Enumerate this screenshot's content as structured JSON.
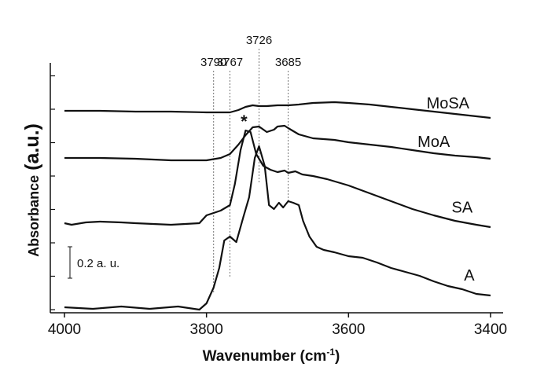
{
  "chart_data": {
    "type": "line",
    "title": "",
    "xlabel": "Wavenumber (cm",
    "xlabel_sup": "-1",
    "xlabel_suffix": ")",
    "ylabel": "Absorbance",
    "ylabel_unit": "(a.u.)",
    "xlim": [
      4000,
      3400
    ],
    "x_ticks": [
      "4000",
      "3800",
      "3600",
      "3400"
    ],
    "x_tick_values": [
      4000,
      3800,
      3600,
      3400
    ],
    "scale_bar_label": "0.2 a. u.",
    "scale_bar_value": 0.2,
    "peak_marker": "*",
    "peak_marker_x": 3745,
    "reference_lines": [
      {
        "x": 3790,
        "label": "3790"
      },
      {
        "x": 3767,
        "label": "3767"
      },
      {
        "x": 3726,
        "label": "3726"
      },
      {
        "x": 3685,
        "label": "3685"
      }
    ],
    "series": [
      {
        "name": "MoSA",
        "x": [
          4000,
          3950,
          3900,
          3850,
          3800,
          3780,
          3767,
          3755,
          3745,
          3735,
          3726,
          3715,
          3700,
          3685,
          3670,
          3650,
          3620,
          3600,
          3570,
          3540,
          3510,
          3480,
          3450,
          3420,
          3400
        ],
        "y": [
          2.55,
          2.55,
          2.54,
          2.54,
          2.53,
          2.53,
          2.53,
          2.56,
          2.6,
          2.62,
          2.61,
          2.61,
          2.62,
          2.62,
          2.63,
          2.65,
          2.66,
          2.65,
          2.63,
          2.6,
          2.57,
          2.54,
          2.51,
          2.48,
          2.46
        ]
      },
      {
        "name": "MoA",
        "x": [
          4000,
          3950,
          3900,
          3850,
          3800,
          3780,
          3767,
          3755,
          3745,
          3735,
          3726,
          3715,
          3705,
          3700,
          3690,
          3685,
          3670,
          3650,
          3620,
          3600,
          3570,
          3540,
          3510,
          3480,
          3450,
          3420,
          3400
        ],
        "y": [
          1.95,
          1.95,
          1.94,
          1.92,
          1.92,
          1.95,
          2.0,
          2.12,
          2.24,
          2.34,
          2.35,
          2.28,
          2.31,
          2.35,
          2.36,
          2.33,
          2.25,
          2.2,
          2.18,
          2.15,
          2.12,
          2.09,
          2.05,
          2.01,
          1.98,
          1.96,
          1.94
        ]
      },
      {
        "name": "SA",
        "x": [
          4000,
          3990,
          3970,
          3950,
          3920,
          3900,
          3850,
          3810,
          3800,
          3790,
          3780,
          3767,
          3760,
          3752,
          3745,
          3738,
          3730,
          3720,
          3710,
          3700,
          3690,
          3685,
          3675,
          3665,
          3650,
          3630,
          3600,
          3570,
          3540,
          3510,
          3480,
          3450,
          3420,
          3400
        ],
        "y": [
          1.12,
          1.1,
          1.13,
          1.14,
          1.13,
          1.12,
          1.1,
          1.12,
          1.22,
          1.25,
          1.28,
          1.35,
          1.62,
          2.05,
          2.3,
          2.28,
          2.0,
          1.85,
          1.8,
          1.77,
          1.79,
          1.76,
          1.78,
          1.74,
          1.72,
          1.68,
          1.6,
          1.5,
          1.4,
          1.3,
          1.22,
          1.15,
          1.1,
          1.07
        ]
      },
      {
        "name": "A",
        "x": [
          4000,
          3960,
          3920,
          3880,
          3840,
          3810,
          3800,
          3790,
          3782,
          3775,
          3767,
          3758,
          3748,
          3740,
          3732,
          3726,
          3718,
          3712,
          3705,
          3698,
          3692,
          3685,
          3678,
          3670,
          3664,
          3655,
          3645,
          3635,
          3620,
          3600,
          3580,
          3560,
          3540,
          3520,
          3500,
          3480,
          3460,
          3440,
          3420,
          3400
        ],
        "y": [
          0.05,
          0.03,
          0.06,
          0.03,
          0.06,
          0.02,
          0.1,
          0.3,
          0.55,
          0.9,
          0.95,
          0.88,
          1.2,
          1.45,
          1.95,
          2.1,
          1.85,
          1.35,
          1.3,
          1.38,
          1.32,
          1.4,
          1.38,
          1.35,
          1.15,
          0.95,
          0.82,
          0.78,
          0.75,
          0.7,
          0.68,
          0.62,
          0.55,
          0.5,
          0.45,
          0.38,
          0.32,
          0.28,
          0.22,
          0.2
        ]
      }
    ]
  }
}
